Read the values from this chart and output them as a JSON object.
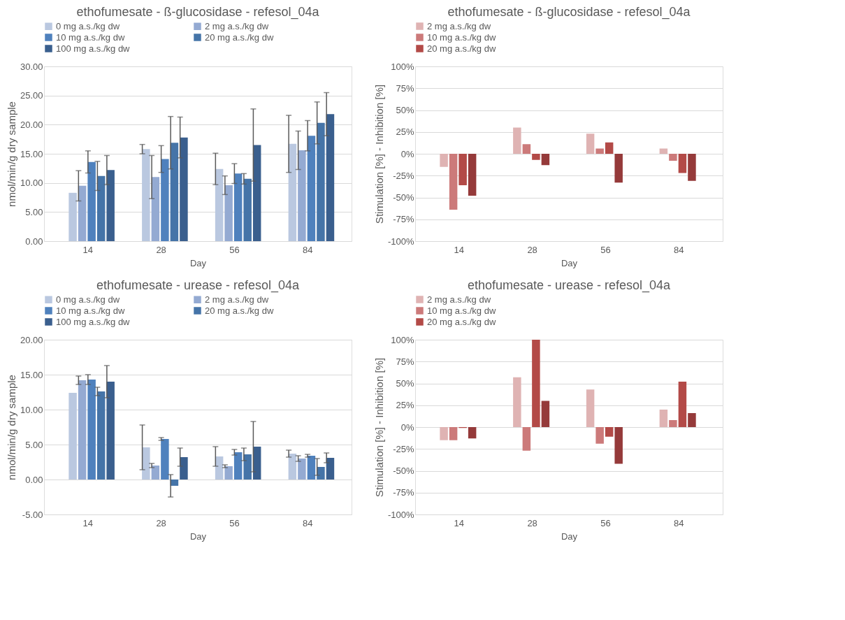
{
  "chart_data": [
    {
      "type": "bar",
      "title": "ethofumesate - ß-glucosidase - refesol_04a",
      "xlabel": "Day",
      "ylabel": "nmol/min/g dry sample",
      "categories": [
        "14",
        "28",
        "56",
        "84"
      ],
      "ylim": [
        0,
        30
      ],
      "yticks": [
        {
          "value": 0,
          "label": "0.00"
        },
        {
          "value": 5,
          "label": "5.00"
        },
        {
          "value": 10,
          "label": "10.00"
        },
        {
          "value": 15,
          "label": "15.00"
        },
        {
          "value": 20,
          "label": "20.00"
        },
        {
          "value": 25,
          "label": "25.00"
        },
        {
          "value": 30,
          "label": "30.00"
        }
      ],
      "grid": "y",
      "legend": "top",
      "series": [
        {
          "name": "0 mg a.s./kg dw",
          "color": "#bac8e0",
          "values": [
            8.3,
            15.8,
            12.4,
            16.7
          ],
          "errors": [
            null,
            0.8,
            2.7,
            4.9
          ]
        },
        {
          "name": "2 mg a.s./kg dw",
          "color": "#94aad2",
          "values": [
            9.5,
            11.0,
            9.6,
            15.6
          ],
          "errors": [
            2.6,
            3.7,
            1.6,
            3.3
          ]
        },
        {
          "name": "10 mg a.s./kg dw",
          "color": "#4f81bd",
          "values": [
            13.6,
            14.1,
            11.6,
            18.1
          ],
          "errors": [
            1.9,
            2.3,
            1.7,
            2.6
          ]
        },
        {
          "name": "20 mg a.s./kg dw",
          "color": "#4574a8",
          "values": [
            11.2,
            16.9,
            10.7,
            20.3
          ],
          "errors": [
            2.5,
            4.5,
            0.9,
            3.6
          ]
        },
        {
          "name": "100 mg a.s./kg dw",
          "color": "#3a5f8e",
          "values": [
            12.2,
            17.8,
            16.5,
            21.8
          ],
          "errors": [
            2.5,
            3.5,
            6.2,
            3.7
          ]
        }
      ]
    },
    {
      "type": "bar",
      "title": "ethofumesate - ß-glucosidase - refesol_04a",
      "xlabel": "Day",
      "ylabel": "Stimulation [%]  - Inhibition [%]",
      "categories": [
        "14",
        "28",
        "56",
        "84"
      ],
      "ylim": [
        -100,
        100
      ],
      "yticks": [
        {
          "value": -100,
          "label": "-100%"
        },
        {
          "value": -75,
          "label": "-75%"
        },
        {
          "value": -50,
          "label": "-50%"
        },
        {
          "value": -25,
          "label": "-25%"
        },
        {
          "value": 0,
          "label": "0%"
        },
        {
          "value": 25,
          "label": "25%"
        },
        {
          "value": 50,
          "label": "50%"
        },
        {
          "value": 75,
          "label": "75%"
        },
        {
          "value": 100,
          "label": "100%"
        }
      ],
      "grid": "y",
      "legend": "top",
      "series": [
        {
          "name": "2 mg a.s./kg dw",
          "color": "#dfb3b3",
          "values": [
            -15,
            30,
            23,
            6
          ]
        },
        {
          "name": "10 mg a.s./kg dw",
          "color": "#cc7a7a",
          "values": [
            -64,
            11,
            6,
            -8
          ]
        },
        {
          "name": "20 mg a.s./kg dw",
          "color": "#b34a47",
          "values": [
            -36,
            -7,
            13,
            -22
          ]
        },
        {
          "color": "#953a3a",
          "values": [
            -48,
            -13,
            -33,
            -31
          ]
        }
      ]
    },
    {
      "type": "bar",
      "title": "ethofumesate - urease - refesol_04a",
      "xlabel": "Day",
      "ylabel": "nmol/min/g dry sample",
      "categories": [
        "14",
        "28",
        "56",
        "84"
      ],
      "ylim": [
        -5,
        20
      ],
      "yticks": [
        {
          "value": -5,
          "label": "-5.00"
        },
        {
          "value": 0,
          "label": "0.00"
        },
        {
          "value": 5,
          "label": "5.00"
        },
        {
          "value": 10,
          "label": "10.00"
        },
        {
          "value": 15,
          "label": "15.00"
        },
        {
          "value": 20,
          "label": "20.00"
        }
      ],
      "grid": "y",
      "legend": "top",
      "series": [
        {
          "name": "0 mg a.s./kg dw",
          "color": "#bac8e0",
          "values": [
            12.4,
            4.6,
            3.3,
            3.7
          ],
          "errors": [
            null,
            3.2,
            1.4,
            0.5
          ]
        },
        {
          "name": "2 mg a.s./kg dw",
          "color": "#94aad2",
          "values": [
            14.2,
            2.0,
            1.9,
            3.0
          ],
          "errors": [
            0.6,
            0.3,
            0.2,
            0.4
          ]
        },
        {
          "name": "10 mg a.s./kg dw",
          "color": "#4f81bd",
          "values": [
            14.3,
            5.8,
            3.9,
            3.4
          ],
          "errors": [
            0.7,
            0.2,
            0.4,
            0.2
          ]
        },
        {
          "name": "20 mg a.s./kg dw",
          "color": "#4574a8",
          "values": [
            12.6,
            -0.9,
            3.6,
            1.8
          ],
          "errors": [
            0.6,
            1.6,
            0.9,
            1.2
          ]
        },
        {
          "name": "100 mg a.s./kg dw",
          "color": "#3a5f8e",
          "values": [
            14.0,
            3.2,
            4.7,
            3.1
          ],
          "errors": [
            2.3,
            1.3,
            3.6,
            0.7
          ]
        }
      ]
    },
    {
      "type": "bar",
      "title": "ethofumesate - urease - refesol_04a",
      "xlabel": "Day",
      "ylabel": "Stimulation [%]  - Inhibition [%]",
      "categories": [
        "14",
        "28",
        "56",
        "84"
      ],
      "ylim": [
        -100,
        100
      ],
      "yticks": [
        {
          "value": -100,
          "label": "-100%"
        },
        {
          "value": -75,
          "label": "-75%"
        },
        {
          "value": -50,
          "label": "-50%"
        },
        {
          "value": -25,
          "label": "-25%"
        },
        {
          "value": 0,
          "label": "0%"
        },
        {
          "value": 25,
          "label": "25%"
        },
        {
          "value": 50,
          "label": "50%"
        },
        {
          "value": 75,
          "label": "75%"
        },
        {
          "value": 100,
          "label": "100%"
        }
      ],
      "grid": "y",
      "legend": "top",
      "series": [
        {
          "name": "2 mg a.s./kg dw",
          "color": "#dfb3b3",
          "values": [
            -15,
            57,
            43,
            20
          ]
        },
        {
          "name": "10 mg a.s./kg dw",
          "color": "#cc7a7a",
          "values": [
            -15,
            -27,
            -19,
            8
          ]
        },
        {
          "name": "20 mg a.s./kg dw",
          "color": "#b34a47",
          "values": [
            -1,
            100,
            -11,
            52
          ]
        },
        {
          "color": "#953a3a",
          "values": [
            -13,
            30,
            -42,
            16
          ]
        }
      ]
    }
  ]
}
